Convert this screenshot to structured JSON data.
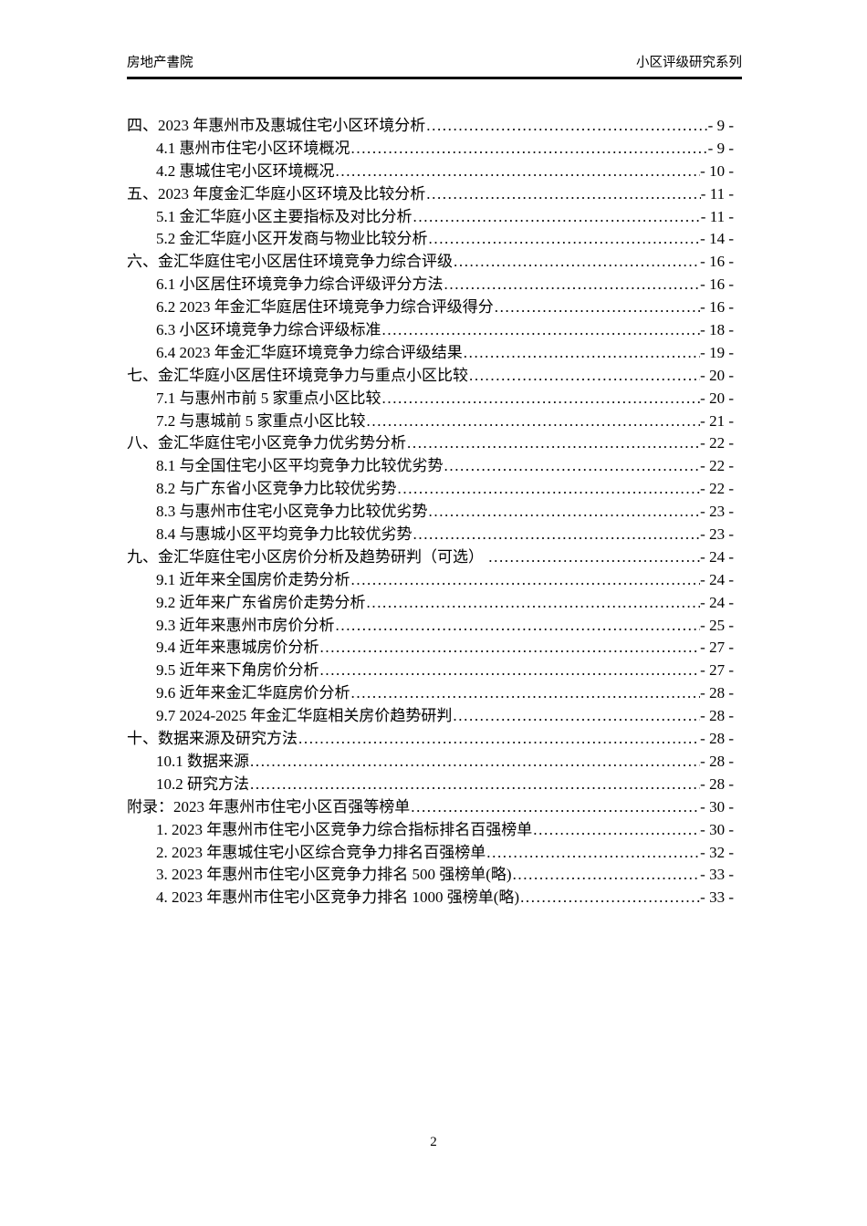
{
  "header": {
    "left_text": "房地产書院",
    "right_text": "小区评级研究系列"
  },
  "toc": {
    "entries": [
      {
        "level": 0,
        "label": "四、2023 年惠州市及惠城住宅小区环境分析",
        "page": "- 9 -"
      },
      {
        "level": 1,
        "label": "4.1 惠州市住宅小区环境概况",
        "page": "- 9 -"
      },
      {
        "level": 1,
        "label": "4.2 惠城住宅小区环境概况",
        "page": "- 10 -"
      },
      {
        "level": 0,
        "label": "五、2023 年度金汇华庭小区环境及比较分析",
        "page": "- 11 -"
      },
      {
        "level": 1,
        "label": "5.1 金汇华庭小区主要指标及对比分析",
        "page": "- 11 -"
      },
      {
        "level": 1,
        "label": "5.2 金汇华庭小区开发商与物业比较分析",
        "page": "- 14 -"
      },
      {
        "level": 0,
        "label": "六、金汇华庭住宅小区居住环境竞争力综合评级",
        "page": "- 16 -"
      },
      {
        "level": 1,
        "label": "6.1 小区居住环境竞争力综合评级评分方法",
        "page": "- 16 -"
      },
      {
        "level": 1,
        "label": "6.2 2023 年金汇华庭居住环境竞争力综合评级得分",
        "page": "- 16 -"
      },
      {
        "level": 1,
        "label": "6.3 小区环境竞争力综合评级标准",
        "page": "- 18 -"
      },
      {
        "level": 1,
        "label": "6.4 2023 年金汇华庭环境竞争力综合评级结果",
        "page": "- 19 -"
      },
      {
        "level": 0,
        "label": "七、金汇华庭小区居住环境竞争力与重点小区比较",
        "page": "- 20 -"
      },
      {
        "level": 1,
        "label": "7.1 与惠州市前 5 家重点小区比较",
        "page": "- 20 -"
      },
      {
        "level": 1,
        "label": "7.2 与惠城前 5 家重点小区比较",
        "page": "- 21 -"
      },
      {
        "level": 0,
        "label": "八、金汇华庭住宅小区竞争力优劣势分析",
        "page": "- 22 -"
      },
      {
        "level": 1,
        "label": "8.1 与全国住宅小区平均竞争力比较优劣势",
        "page": "- 22 -"
      },
      {
        "level": 1,
        "label": "8.2 与广东省小区竞争力比较优劣势",
        "page": "- 22 -"
      },
      {
        "level": 1,
        "label": "8.3 与惠州市住宅小区竞争力比较优劣势",
        "page": "- 23 -"
      },
      {
        "level": 1,
        "label": "8.4 与惠城小区平均竞争力比较优劣势",
        "page": "- 23 -"
      },
      {
        "level": 0,
        "label": "九、金汇华庭住宅小区房价分析及趋势研判（可选） ",
        "page": "- 24 -"
      },
      {
        "level": 1,
        "label": "9.1 近年来全国房价走势分析",
        "page": "- 24 -"
      },
      {
        "level": 1,
        "label": "9.2 近年来广东省房价走势分析",
        "page": "- 24 -"
      },
      {
        "level": 1,
        "label": "9.3 近年来惠州市房价分析",
        "page": "- 25 -"
      },
      {
        "level": 1,
        "label": "9.4 近年来惠城房价分析",
        "page": "- 27 -"
      },
      {
        "level": 1,
        "label": "9.5 近年来下角房价分析",
        "page": "- 27 -"
      },
      {
        "level": 1,
        "label": "9.6 近年来金汇华庭房价分析",
        "page": "- 28 -"
      },
      {
        "level": 1,
        "label": "9.7 2024-2025 年金汇华庭相关房价趋势研判",
        "page": "- 28 -"
      },
      {
        "level": 0,
        "label": "十、数据来源及研究方法",
        "page": "- 28 -"
      },
      {
        "level": 1,
        "label": "10.1 数据来源",
        "page": "- 28 -"
      },
      {
        "level": 1,
        "label": "10.2 研究方法",
        "page": "- 28 -"
      },
      {
        "level": 0,
        "label": "附录：2023 年惠州市住宅小区百强等榜单",
        "page": "- 30 -"
      },
      {
        "level": 1,
        "label": "1. 2023 年惠州市住宅小区竞争力综合指标排名百强榜单",
        "page": "- 30 -"
      },
      {
        "level": 1,
        "label": "2. 2023 年惠城住宅小区综合竞争力排名百强榜单",
        "page": "- 32 -"
      },
      {
        "level": 1,
        "label": "3. 2023 年惠州市住宅小区竞争力排名 500 强榜单(略)",
        "page": "- 33 -"
      },
      {
        "level": 1,
        "label": "4. 2023 年惠州市住宅小区竞争力排名 1000 强榜单(略)",
        "page": "- 33 -"
      }
    ]
  },
  "footer": {
    "page_number": "2"
  }
}
